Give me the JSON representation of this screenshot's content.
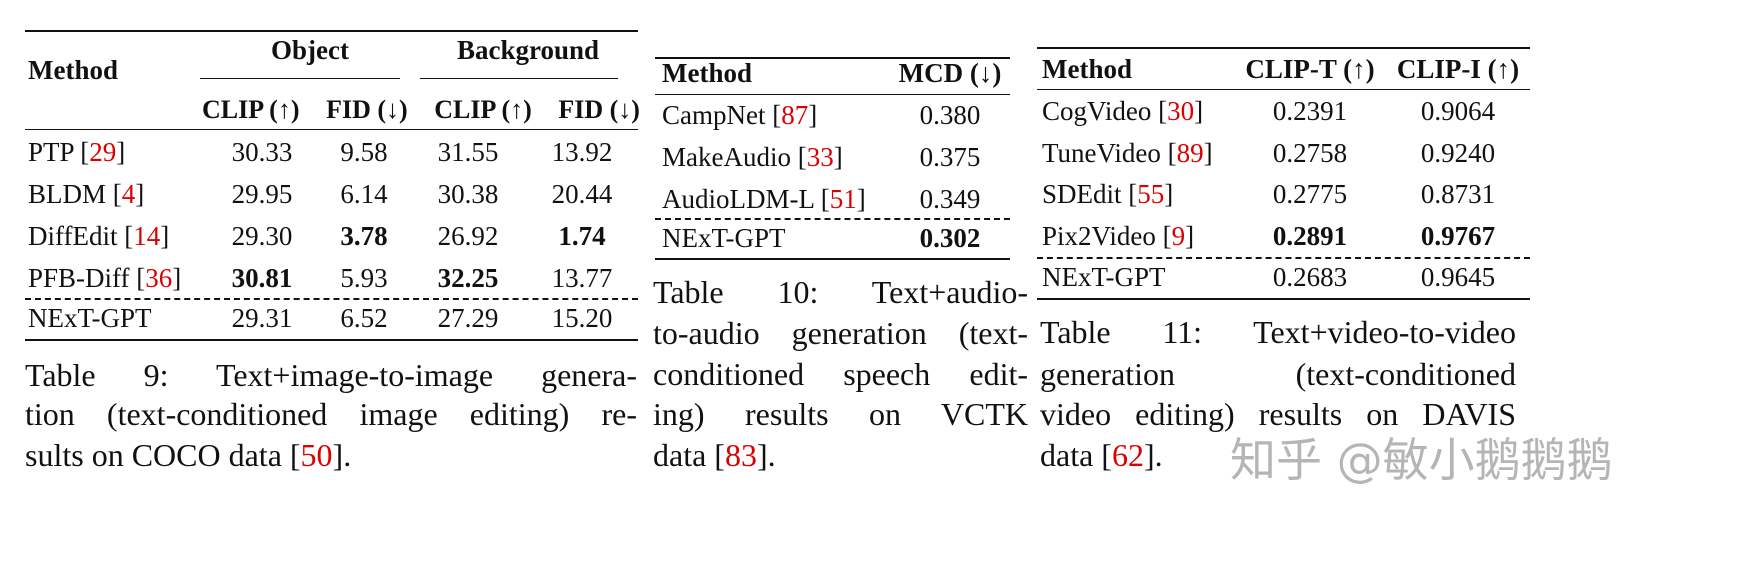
{
  "table9": {
    "headers": {
      "method": "Method",
      "group1": "Object",
      "group2": "Background",
      "cols": [
        "CLIP (↑)",
        "FID (↓)",
        "CLIP (↑)",
        "FID (↓)"
      ]
    },
    "rows": [
      {
        "method": "PTP",
        "ref": "29",
        "values": [
          "30.33",
          "9.58",
          "31.55",
          "13.92"
        ],
        "bold": [
          false,
          false,
          false,
          false
        ]
      },
      {
        "method": "BLDM",
        "ref": "4",
        "values": [
          "29.95",
          "6.14",
          "30.38",
          "20.44"
        ],
        "bold": [
          false,
          false,
          false,
          false
        ]
      },
      {
        "method": "DiffEdit",
        "ref": "14",
        "values": [
          "29.30",
          "3.78",
          "26.92",
          "1.74"
        ],
        "bold": [
          false,
          true,
          false,
          true
        ]
      },
      {
        "method": "PFB-Diff",
        "ref": "36",
        "values": [
          "30.81",
          "5.93",
          "32.25",
          "13.77"
        ],
        "bold": [
          true,
          false,
          true,
          false
        ]
      },
      {
        "method": "NExT-GPT",
        "ref": "",
        "values": [
          "29.31",
          "6.52",
          "27.29",
          "15.20"
        ],
        "bold": [
          false,
          false,
          false,
          false
        ]
      }
    ],
    "caption": [
      {
        "pre": "Table 9:   Text+image-to-image genera-",
        "ref": "",
        "post": ""
      },
      {
        "pre": "tion (text-conditioned image editing) re-",
        "ref": "",
        "post": ""
      },
      {
        "pre": "sults on COCO data [",
        "ref": "50",
        "post": "]."
      }
    ]
  },
  "table10": {
    "headers": {
      "method": "Method",
      "cols": [
        "MCD (↓)"
      ]
    },
    "rows": [
      {
        "method": "CampNet",
        "ref": "87",
        "values": [
          "0.380"
        ],
        "bold": [
          false
        ]
      },
      {
        "method": "MakeAudio",
        "ref": "33",
        "values": [
          "0.375"
        ],
        "bold": [
          false
        ]
      },
      {
        "method": "AudioLDM-L",
        "ref": "51",
        "values": [
          "0.349"
        ],
        "bold": [
          false
        ]
      },
      {
        "method": "NExT-GPT",
        "ref": "",
        "values": [
          "0.302"
        ],
        "bold": [
          true
        ]
      }
    ],
    "caption": [
      {
        "pre": "Table 10:    Text+audio-",
        "ref": "",
        "post": ""
      },
      {
        "pre": "to-audio generation (text-",
        "ref": "",
        "post": ""
      },
      {
        "pre": "conditioned speech edit-",
        "ref": "",
        "post": ""
      },
      {
        "pre": "ing)  results  on  VCTK",
        "ref": "",
        "post": ""
      },
      {
        "pre": "data [",
        "ref": "83",
        "post": "]."
      }
    ]
  },
  "table11": {
    "headers": {
      "method": "Method",
      "cols": [
        "CLIP-T (↑)",
        "CLIP-I (↑)"
      ]
    },
    "rows": [
      {
        "method": "CogVideo",
        "ref": "30",
        "values": [
          "0.2391",
          "0.9064"
        ],
        "bold": [
          false,
          false
        ]
      },
      {
        "method": "TuneVideo",
        "ref": "89",
        "values": [
          "0.2758",
          "0.9240"
        ],
        "bold": [
          false,
          false
        ]
      },
      {
        "method": "SDEdit",
        "ref": "55",
        "values": [
          "0.2775",
          "0.8731"
        ],
        "bold": [
          false,
          false
        ]
      },
      {
        "method": "Pix2Video",
        "ref": "9",
        "values": [
          "0.2891",
          "0.9767"
        ],
        "bold": [
          true,
          true
        ]
      },
      {
        "method": "NExT-GPT",
        "ref": "",
        "values": [
          "0.2683",
          "0.9645"
        ],
        "bold": [
          false,
          false
        ]
      }
    ],
    "caption": [
      {
        "pre": "Table 11:  Text+video-to-video",
        "ref": "",
        "post": ""
      },
      {
        "pre": "generation      (text-conditioned",
        "ref": "",
        "post": ""
      },
      {
        "pre": "video editing) results on DAVIS",
        "ref": "",
        "post": ""
      },
      {
        "pre": "data [",
        "ref": "62",
        "post": "]."
      }
    ]
  },
  "watermark": "知乎 @敏小鹅鹅鹅"
}
